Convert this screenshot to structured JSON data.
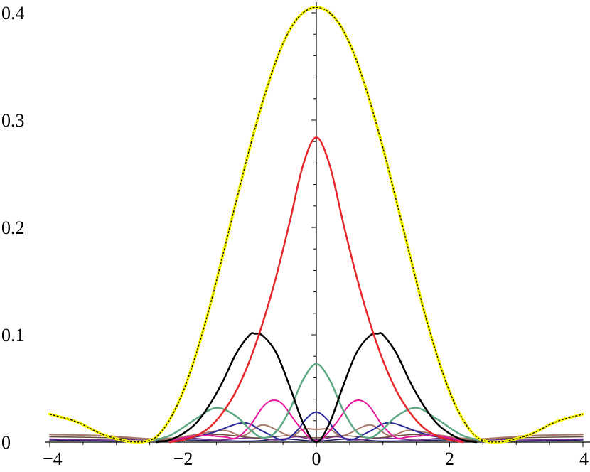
{
  "chart_data": {
    "type": "line",
    "title": "",
    "xlabel": "",
    "ylabel": "",
    "xlim": [
      -4,
      4
    ],
    "ylim": [
      0,
      0.41
    ],
    "grid": false,
    "legend": "none",
    "x_ticks": [
      -4,
      -2,
      0,
      2,
      4
    ],
    "x_tick_labels": [
      "−4",
      "−2",
      "0",
      "2",
      "4"
    ],
    "y_ticks": [
      0,
      0.1,
      0.2,
      0.3,
      0.4
    ],
    "y_tick_labels": [
      "0",
      "0.1",
      "0.2",
      "0.3",
      "0.4"
    ],
    "series": [
      {
        "color": "#ffff00",
        "dashed_overlay": "#000000",
        "width": 4,
        "x": [
          -4,
          -3.6,
          -3.2,
          -2.8,
          -2.6,
          -2.4,
          -2.2,
          -2,
          -1.8,
          -1.6,
          -1.4,
          -1.2,
          -1,
          -0.8,
          -0.6,
          -0.4,
          -0.2,
          0,
          0.2,
          0.4,
          0.6,
          0.8,
          1,
          1.2,
          1.4,
          1.6,
          1.8,
          2,
          2.2,
          2.4,
          2.6,
          2.8,
          3.2,
          3.6,
          4
        ],
        "y": [
          0.026,
          0.019,
          0.007,
          0.0003,
          0.0002,
          0.005,
          0.021,
          0.047,
          0.083,
          0.126,
          0.175,
          0.225,
          0.274,
          0.318,
          0.356,
          0.384,
          0.4,
          0.405,
          0.4,
          0.384,
          0.356,
          0.318,
          0.274,
          0.225,
          0.175,
          0.126,
          0.083,
          0.047,
          0.021,
          0.005,
          0.0002,
          0.0003,
          0.007,
          0.019,
          0.026
        ]
      },
      {
        "color": "#e5262b",
        "width": 2.5,
        "x": [
          -2.2,
          -2,
          -1.8,
          -1.6,
          -1.4,
          -1.2,
          -1,
          -0.8,
          -0.6,
          -0.4,
          -0.2,
          0,
          0.2,
          0.4,
          0.6,
          0.8,
          1,
          1.2,
          1.4,
          1.6,
          1.8,
          2,
          2.2
        ],
        "y": [
          0,
          0.002,
          0.006,
          0.014,
          0.028,
          0.048,
          0.076,
          0.112,
          0.155,
          0.205,
          0.258,
          0.284,
          0.258,
          0.205,
          0.155,
          0.112,
          0.076,
          0.048,
          0.028,
          0.014,
          0.006,
          0.002,
          0
        ]
      },
      {
        "color": "#000000",
        "width": 2.5,
        "x": [
          -2.4,
          -2.2,
          -2,
          -1.8,
          -1.6,
          -1.4,
          -1.2,
          -1,
          -0.92,
          -0.8,
          -0.6,
          -0.4,
          -0.2,
          0,
          0.2,
          0.4,
          0.6,
          0.8,
          0.92,
          1,
          1.2,
          1.4,
          1.6,
          1.8,
          2,
          2.2,
          2.4
        ],
        "y": [
          0,
          0.002,
          0.008,
          0.018,
          0.035,
          0.057,
          0.083,
          0.1,
          0.101,
          0.099,
          0.083,
          0.052,
          0.018,
          0,
          0.018,
          0.052,
          0.083,
          0.099,
          0.101,
          0.1,
          0.083,
          0.057,
          0.035,
          0.018,
          0.008,
          0.002,
          0
        ]
      },
      {
        "color": "#5fa884",
        "width": 2.5,
        "x": [
          -2.6,
          -2.2,
          -1.8,
          -1.5,
          -1.2,
          -1,
          -0.8,
          -0.6,
          -0.4,
          -0.2,
          0,
          0.2,
          0.4,
          0.6,
          0.8,
          1,
          1.2,
          1.5,
          1.8,
          2.2,
          2.6
        ],
        "y": [
          0,
          0.006,
          0.022,
          0.032,
          0.024,
          0.012,
          0.004,
          0.01,
          0.03,
          0.058,
          0.073,
          0.058,
          0.03,
          0.01,
          0.004,
          0.012,
          0.024,
          0.032,
          0.022,
          0.006,
          0
        ]
      },
      {
        "color": "#e5189b",
        "width": 2,
        "x": [
          -2.2,
          -1.8,
          -1.4,
          -1.2,
          -1,
          -0.8,
          -0.65,
          -0.5,
          -0.3,
          -0.1,
          0,
          0.1,
          0.3,
          0.5,
          0.65,
          0.8,
          1,
          1.2,
          1.4,
          1.8,
          2.2
        ],
        "y": [
          0.001,
          0.006,
          0.005,
          0.004,
          0.015,
          0.033,
          0.039,
          0.035,
          0.018,
          0.004,
          0.001,
          0.004,
          0.018,
          0.035,
          0.039,
          0.033,
          0.015,
          0.004,
          0.005,
          0.006,
          0.001
        ]
      },
      {
        "color": "#2a2a99",
        "width": 2,
        "x": [
          -2.4,
          -2,
          -1.6,
          -1.1,
          -0.8,
          -0.5,
          -0.3,
          -0.15,
          0,
          0.15,
          0.3,
          0.5,
          0.8,
          1.1,
          1.6,
          2,
          2.4
        ],
        "y": [
          0,
          0.003,
          0.008,
          0.018,
          0.01,
          0.002,
          0.01,
          0.022,
          0.028,
          0.022,
          0.01,
          0.002,
          0.01,
          0.018,
          0.008,
          0.003,
          0
        ]
      },
      {
        "color": "#a97a6a",
        "width": 2,
        "x": [
          -4,
          -3.2,
          -2.4,
          -1.9,
          -1.4,
          -1.1,
          -0.8,
          -0.4,
          -0.2,
          0,
          0.2,
          0.4,
          0.8,
          1.1,
          1.4,
          1.9,
          2.4,
          3.2,
          4
        ],
        "y": [
          0.007,
          0.006,
          0.003,
          0.006,
          0.011,
          0.006,
          0.016,
          0.006,
          0.012,
          0.012,
          0.012,
          0.006,
          0.016,
          0.006,
          0.011,
          0.006,
          0.003,
          0.006,
          0.007
        ]
      },
      {
        "color": "#6a4a3a",
        "width": 1.5,
        "x": [
          -4,
          -3,
          -2.2,
          -1.5,
          -0.9,
          -0.4,
          0,
          0.4,
          0.9,
          1.5,
          2.2,
          3,
          4
        ],
        "y": [
          0.005,
          0.004,
          0.002,
          0.007,
          0.004,
          0.006,
          0.004,
          0.006,
          0.004,
          0.007,
          0.002,
          0.004,
          0.005
        ]
      },
      {
        "color": "#7a2a8a",
        "width": 1.5,
        "x": [
          -4,
          -3,
          -2,
          -1.5,
          -1,
          -0.6,
          -0.3,
          0,
          0.3,
          0.6,
          1,
          1.5,
          2,
          3,
          4
        ],
        "y": [
          0.003,
          0.002,
          0.004,
          0.002,
          0.004,
          0.002,
          0.005,
          0.002,
          0.005,
          0.002,
          0.004,
          0.002,
          0.004,
          0.002,
          0.003
        ]
      },
      {
        "color": "#1b1b6b",
        "width": 1.5,
        "x": [
          -4,
          -3,
          -2,
          -1,
          -0.5,
          0,
          0.5,
          1,
          2,
          3,
          4
        ],
        "y": [
          0.002,
          0.001,
          0.002,
          0.001,
          0.003,
          0.001,
          0.003,
          0.001,
          0.002,
          0.001,
          0.002
        ]
      }
    ]
  }
}
